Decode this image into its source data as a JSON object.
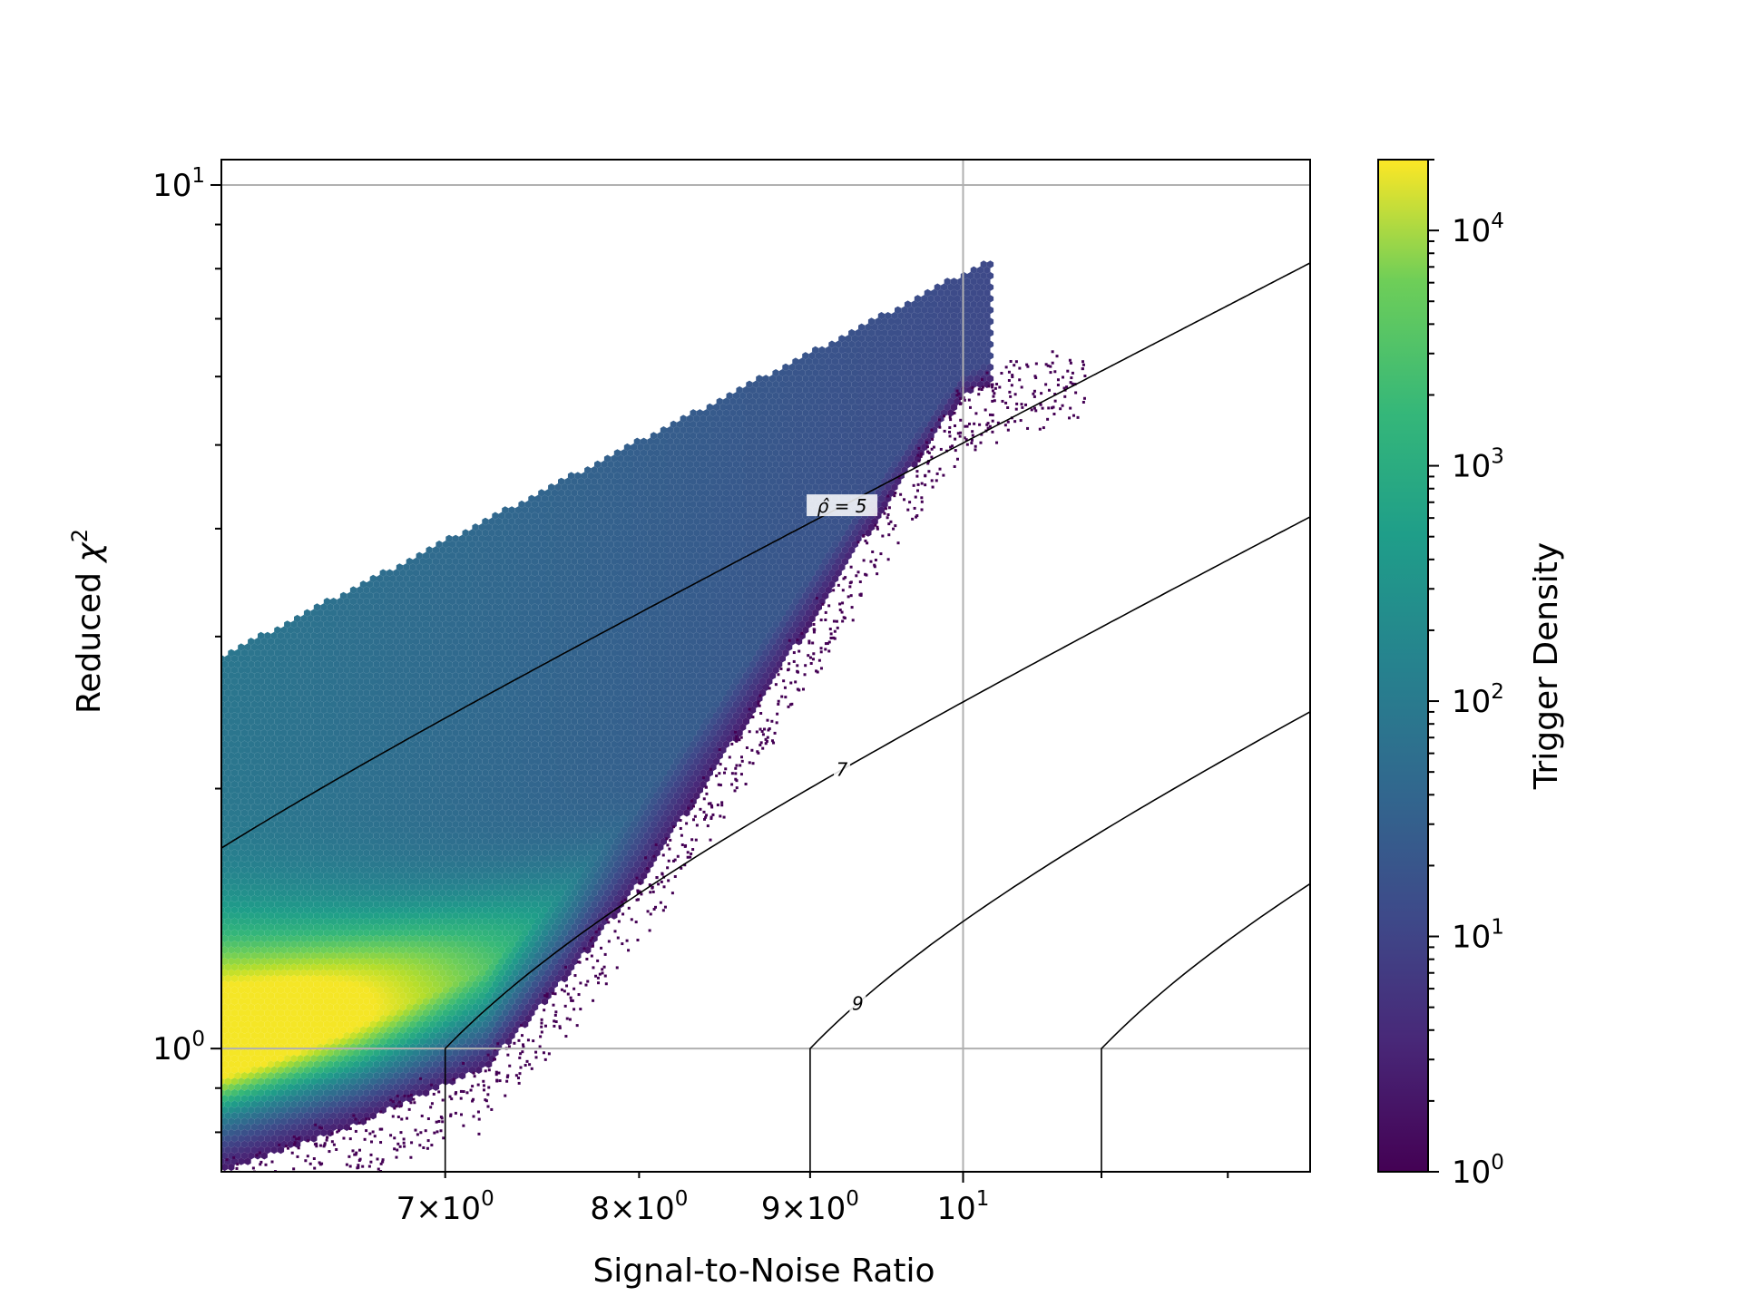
{
  "chart_data": {
    "type": "heatmap",
    "subtype": "hexbin",
    "title": "",
    "xlabel": "Signal-to-Noise Ratio",
    "ylabel_text": "Reduced ",
    "ylabel_symbol": "χ",
    "ylabel_exponent": "2",
    "x_scale": "log",
    "y_scale": "log",
    "xlim": [
      6.0,
      12.7
    ],
    "ylim": [
      0.72,
      10.7
    ],
    "grid": true,
    "x_ticks": [
      {
        "value": 7,
        "mantissa": "7",
        "exponent": "0",
        "text": "7×10⁰"
      },
      {
        "value": 8,
        "mantissa": "8",
        "exponent": "0",
        "text": "8×10⁰"
      },
      {
        "value": 9,
        "mantissa": "9",
        "exponent": "0",
        "text": "9×10⁰"
      },
      {
        "value": 10,
        "mantissa": "",
        "exponent": "1",
        "text": "10¹"
      }
    ],
    "y_ticks": [
      {
        "value": 1,
        "exponent": "0",
        "text": "10⁰"
      },
      {
        "value": 10,
        "exponent": "1",
        "text": "10¹"
      }
    ],
    "colorbar": {
      "label": "Trigger Density",
      "scale": "log",
      "colormap": "viridis",
      "range": [
        1,
        20000
      ],
      "ticks": [
        {
          "value": 1,
          "exponent": "0",
          "text": "10⁰"
        },
        {
          "value": 10,
          "exponent": "1",
          "text": "10¹"
        },
        {
          "value": 100,
          "exponent": "2",
          "text": "10²"
        },
        {
          "value": 1000,
          "exponent": "3",
          "text": "10³"
        },
        {
          "value": 10000,
          "exponent": "4",
          "text": "10⁴"
        }
      ]
    },
    "density_band": {
      "upper_edge": [
        [
          6.0,
          2.85
        ],
        [
          10.0,
          7.9
        ]
      ],
      "lower_edge": [
        [
          6.0,
          0.72
        ],
        [
          6.6,
          0.82
        ],
        [
          7.2,
          0.95
        ],
        [
          7.6,
          1.2
        ],
        [
          8.0,
          1.55
        ],
        [
          8.5,
          2.2
        ],
        [
          9.0,
          3.1
        ],
        [
          9.5,
          4.3
        ],
        [
          10.0,
          5.7
        ],
        [
          10.5,
          6.2
        ]
      ],
      "peak": {
        "x": 6.0,
        "y": 1.05,
        "density": 18000
      }
    },
    "contours": {
      "quantity": "ρ̂",
      "line_color": "#000000",
      "levels": [
        {
          "value": 5,
          "label": "ρ̂ = 5",
          "x_at_chi_1": 5.0,
          "labeled": true,
          "label_x": 9.2
        },
        {
          "value": 7,
          "label": "7",
          "x_at_chi_1": 7.0,
          "labeled": true,
          "label_x": 9.2
        },
        {
          "value": 9,
          "label": "9",
          "x_at_chi_1": 9.0,
          "labeled": true,
          "label_x": 9.3
        },
        {
          "value": 11,
          "label": "",
          "x_at_chi_1": 11.0,
          "labeled": false
        }
      ]
    }
  }
}
